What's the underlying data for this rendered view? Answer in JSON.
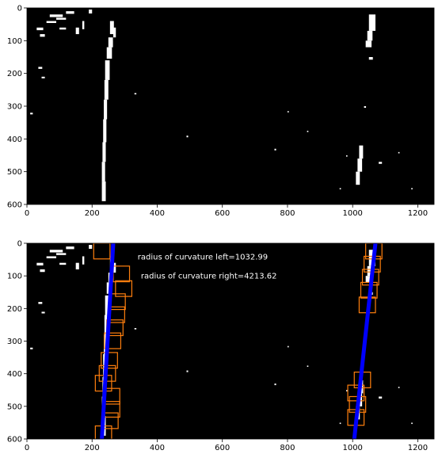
{
  "chart_data": [
    {
      "type": "image",
      "title": "",
      "xlabel": "",
      "ylabel": "",
      "xlim": [
        0,
        1250
      ],
      "ylim": [
        600,
        0
      ],
      "x_ticks": [
        "0",
        "200",
        "400",
        "600",
        "800",
        "1000",
        "1200"
      ],
      "y_ticks": [
        "0",
        "100",
        "200",
        "300",
        "400",
        "500",
        "600"
      ],
      "background": "#000000",
      "lane_pixels_color": "#ffffff"
    },
    {
      "type": "image",
      "title": "",
      "xlabel": "",
      "ylabel": "",
      "xlim": [
        0,
        1250
      ],
      "ylim": [
        600,
        0
      ],
      "x_ticks": [
        "0",
        "200",
        "400",
        "600",
        "800",
        "1000",
        "1200"
      ],
      "y_ticks": [
        "0",
        "100",
        "200",
        "300",
        "400",
        "500",
        "600"
      ],
      "background": "#000000",
      "window_color": "#ff7f0e",
      "fit_line_color": "#0000ff",
      "annotations": [
        {
          "text": "radius of curvature left=1032.99",
          "x": 340,
          "y": 40
        },
        {
          "text": "radius of curvature right=4213.62",
          "x": 350,
          "y": 98
        }
      ],
      "left_fit": {
        "x": [
          265,
          230
        ],
        "y": [
          0,
          600
        ]
      },
      "right_fit": {
        "x": [
          1070,
          1005
        ],
        "y": [
          0,
          600
        ]
      },
      "left_windows": [
        {
          "x": 205,
          "y": 0
        },
        {
          "x": 265,
          "y": 70
        },
        {
          "x": 272,
          "y": 115
        },
        {
          "x": 252,
          "y": 155
        },
        {
          "x": 250,
          "y": 195
        },
        {
          "x": 245,
          "y": 235
        },
        {
          "x": 238,
          "y": 275
        },
        {
          "x": 228,
          "y": 335
        },
        {
          "x": 222,
          "y": 375
        },
        {
          "x": 210,
          "y": 405
        },
        {
          "x": 235,
          "y": 445
        },
        {
          "x": 235,
          "y": 485
        },
        {
          "x": 230,
          "y": 520
        },
        {
          "x": 210,
          "y": 560
        }
      ],
      "right_windows": [
        {
          "x": 1040,
          "y": 0
        },
        {
          "x": 1035,
          "y": 40
        },
        {
          "x": 1030,
          "y": 80
        },
        {
          "x": 1025,
          "y": 120
        },
        {
          "x": 1020,
          "y": 165
        },
        {
          "x": 1005,
          "y": 395
        },
        {
          "x": 985,
          "y": 435
        },
        {
          "x": 990,
          "y": 470
        },
        {
          "x": 985,
          "y": 510
        }
      ],
      "window_size": {
        "w": 50,
        "h": 48
      }
    }
  ]
}
